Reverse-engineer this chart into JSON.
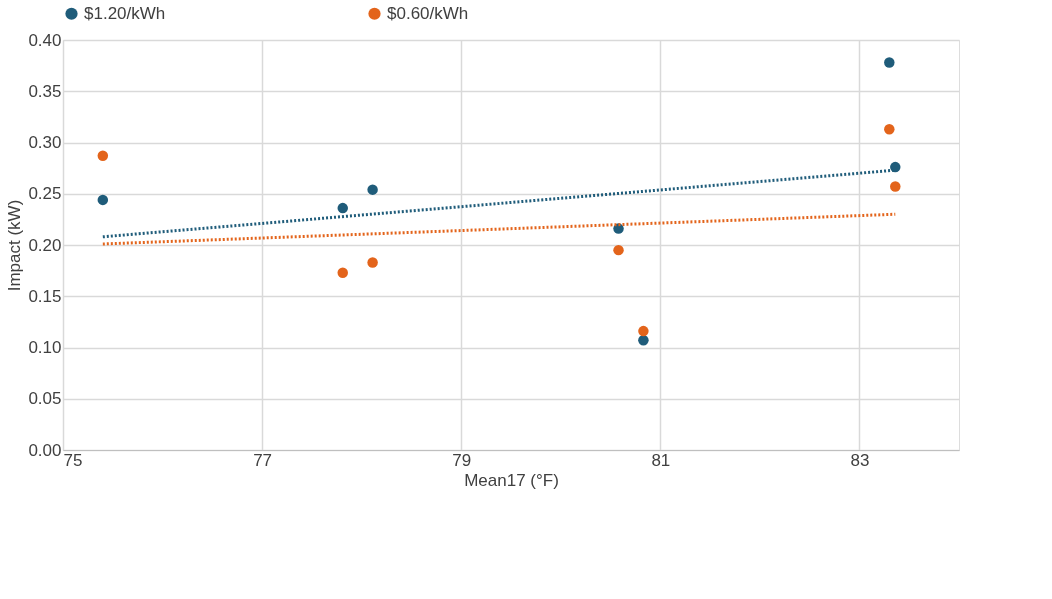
{
  "chart_data": {
    "type": "scatter",
    "xlabel": "Mean17 (°F)",
    "ylabel": "Impact (kW)",
    "xlim": [
      75,
      84
    ],
    "xticks": [
      75,
      77,
      79,
      81,
      83
    ],
    "ylim": [
      0,
      0.4
    ],
    "yticks": [
      {
        "value": 0,
        "label": "0.00"
      },
      {
        "value": 0.05,
        "label": "0.05"
      },
      {
        "value": 0.1,
        "label": "0.10"
      },
      {
        "value": 0.15,
        "label": "0.15"
      },
      {
        "value": 0.2,
        "label": "0.20"
      },
      {
        "value": 0.25,
        "label": "0.25"
      },
      {
        "value": 0.3,
        "label": "0.30"
      },
      {
        "value": 0.35,
        "label": "0.35"
      },
      {
        "value": 0.4,
        "label": "0.40"
      }
    ],
    "grid": true,
    "legend": "top",
    "series": [
      {
        "name": "$1.20/kWh",
        "marker": "circle",
        "color": "#1f5c7a",
        "x": [
          75.4,
          77.81,
          78.11,
          80.58,
          80.83,
          83.3,
          83.36
        ],
        "values": [
          0.244,
          0.236,
          0.254,
          0.216,
          0.107,
          0.378,
          0.276
        ]
      },
      {
        "name": "$0.60/kWh",
        "marker": "circle",
        "color": "#e3641b",
        "x": [
          75.4,
          77.81,
          78.11,
          80.58,
          80.83,
          83.3,
          83.36
        ],
        "values": [
          0.287,
          0.173,
          0.183,
          0.195,
          0.116,
          0.313,
          0.257
        ]
      },
      {
        "type": "line",
        "marker": "none",
        "line_style": "dotted",
        "color": "#1f5c7a",
        "x": [
          75.4,
          83.36
        ],
        "values": [
          0.208,
          0.273
        ]
      },
      {
        "type": "line",
        "marker": "none",
        "line_style": "dotted",
        "color": "#e3641b",
        "x": [
          75.4,
          83.36
        ],
        "values": [
          0.201,
          0.23
        ]
      }
    ]
  }
}
